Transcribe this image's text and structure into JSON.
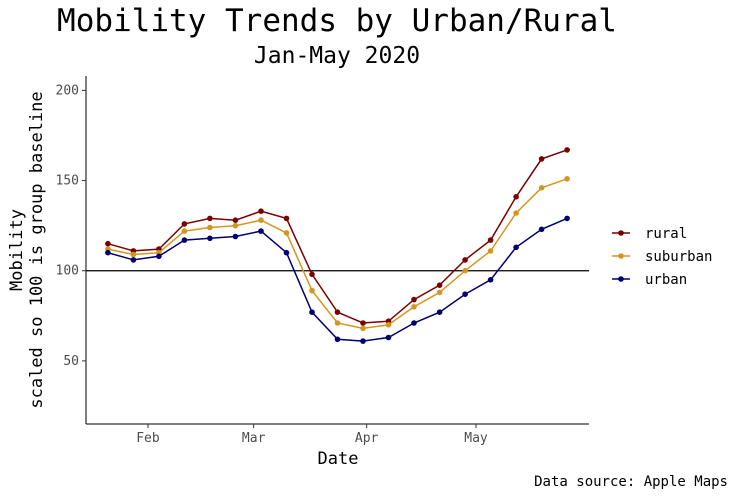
{
  "chart_data": {
    "type": "line",
    "title": "Mobility Trends by Urban/Rural",
    "subtitle": "Jan-May 2020",
    "xlabel": "Date",
    "ylabel_line1": "Mobility",
    "ylabel_line2": "scaled so 100 is group baseline",
    "caption": "Data source: Apple Maps",
    "ylim": [
      15,
      208
    ],
    "xlim": [
      "2020-01-15",
      "2020-06-01"
    ],
    "y_ticks": [
      50,
      100,
      150,
      200
    ],
    "x_ticks": [
      {
        "date": "2020-02-01",
        "label": "Feb"
      },
      {
        "date": "2020-03-01",
        "label": "Mar"
      },
      {
        "date": "2020-04-01",
        "label": "Apr"
      },
      {
        "date": "2020-05-01",
        "label": "May"
      }
    ],
    "reference_line": 100,
    "grid": false,
    "legend_position": "right",
    "x": [
      "2020-01-21",
      "2020-01-28",
      "2020-02-04",
      "2020-02-11",
      "2020-02-18",
      "2020-02-25",
      "2020-03-03",
      "2020-03-10",
      "2020-03-17",
      "2020-03-24",
      "2020-03-31",
      "2020-04-07",
      "2020-04-14",
      "2020-04-21",
      "2020-04-28",
      "2020-05-05",
      "2020-05-12",
      "2020-05-19",
      "2020-05-26"
    ],
    "series": [
      {
        "name": "rural",
        "color": "#7a0000",
        "values": [
          115,
          111,
          112,
          126,
          129,
          128,
          133,
          129,
          98,
          77,
          71,
          72,
          84,
          92,
          106,
          117,
          141,
          162,
          167
        ]
      },
      {
        "name": "suburban",
        "color": "#d4961e",
        "values": [
          112,
          109,
          110,
          122,
          124,
          125,
          128,
          121,
          89,
          71,
          68,
          70,
          80,
          88,
          100,
          111,
          132,
          146,
          151
        ]
      },
      {
        "name": "urban",
        "color": "#000070",
        "values": [
          110,
          106,
          108,
          117,
          118,
          119,
          122,
          110,
          77,
          62,
          61,
          63,
          71,
          77,
          87,
          95,
          113,
          123,
          129
        ]
      }
    ]
  }
}
